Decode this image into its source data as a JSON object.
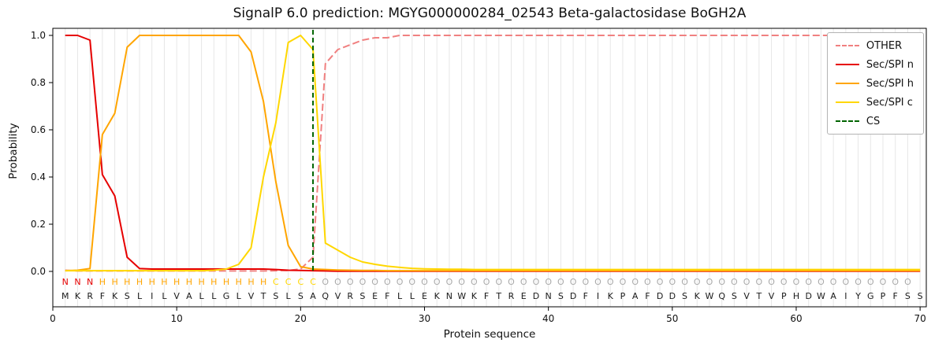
{
  "chart_data": {
    "type": "line",
    "title": "SignalP 6.0 prediction: MGYG000000284_02543 Beta-galactosidase BoGH2A",
    "xlabel": "Protein sequence",
    "ylabel": "Probability",
    "xlim": [
      0,
      70.5
    ],
    "ylim": [
      -0.15,
      1.03
    ],
    "xticks": [
      0,
      10,
      20,
      30,
      40,
      50,
      60,
      70
    ],
    "yticks": [
      0,
      0.2,
      0.4,
      0.6,
      0.8,
      1
    ],
    "grid": "vertical per-residue gridlines",
    "grid_color": "#e7e7e7",
    "legend_position": "upper right",
    "x_start": 1,
    "sequence": "MKRFKSLILVALLGLVTSLSAQVRSEFLLEKNWKFTREDNSDFIKPAFDDSKWQSVTVPHDWAIYGPFSS",
    "region_labels": "NNNHHHHHHHHHHHHHHCCCCOOOOOOOOOOOOOOOOOOOOOOOOOOOOOOOOOOOOOOOOOOOOOOOO",
    "residue_label_colors": {
      "N": "#e60000",
      "H": "#ffa500",
      "C": "#ffd700",
      "O": "#aaaaaa"
    },
    "sequence_letter_color": "#1a1a1a",
    "cs": {
      "label": "CS",
      "position": 21,
      "color": "#006400",
      "dash": "dashed"
    },
    "series": [
      {
        "name": "OTHER",
        "color": "#f08080",
        "dash": "dashed",
        "values": [
          0.005,
          0.002,
          0.002,
          0.002,
          0.002,
          0.002,
          0.002,
          0.002,
          0.002,
          0.002,
          0.002,
          0.002,
          0.002,
          0.002,
          0.002,
          0.002,
          0.002,
          0.003,
          0.004,
          0.01,
          0.06,
          0.88,
          0.94,
          0.96,
          0.98,
          0.99,
          0.99,
          1,
          1,
          1,
          1,
          1,
          1,
          1,
          1,
          1,
          1,
          1,
          1,
          1,
          1,
          1,
          1,
          1,
          1,
          1,
          1,
          1,
          1,
          1,
          1,
          1,
          1,
          1,
          1,
          1,
          1,
          1,
          1,
          1,
          1,
          1,
          1,
          1,
          1,
          1,
          1,
          1,
          1,
          1
        ]
      },
      {
        "name": "Sec/SPI n",
        "color": "#e60000",
        "dash": "solid",
        "values": [
          1,
          1,
          0.98,
          0.41,
          0.32,
          0.06,
          0.012,
          0.01,
          0.01,
          0.01,
          0.01,
          0.01,
          0.01,
          0.01,
          0.01,
          0.01,
          0.01,
          0.008,
          0.005,
          0.004,
          0.003,
          0.002,
          0.001,
          0.001,
          0.001,
          0.001,
          0.001,
          0.001,
          0.001,
          0.001,
          0.001,
          0.001,
          0.001,
          0.001,
          0.001,
          0.001,
          0.001,
          0.001,
          0.001,
          0.001,
          0.001,
          0.001,
          0.001,
          0.001,
          0.001,
          0.001,
          0.001,
          0.001,
          0.001,
          0.001,
          0.001,
          0.001,
          0.001,
          0.001,
          0.001,
          0.001,
          0.001,
          0.001,
          0.001,
          0.001,
          0.001,
          0.001,
          0.001,
          0.001,
          0.001,
          0.001,
          0.001,
          0.001,
          0.001,
          0.001
        ]
      },
      {
        "name": "Sec/SPI h",
        "color": "#ffa500",
        "dash": "solid",
        "values": [
          0.003,
          0.005,
          0.012,
          0.58,
          0.67,
          0.95,
          1,
          1,
          1,
          1,
          1,
          1,
          1,
          1,
          1,
          0.93,
          0.72,
          0.38,
          0.11,
          0.02,
          0.01,
          0.008,
          0.006,
          0.005,
          0.004,
          0.004,
          0.003,
          0.003,
          0.003,
          0.003,
          0.003,
          0.003,
          0.003,
          0.003,
          0.003,
          0.003,
          0.003,
          0.003,
          0.003,
          0.003,
          0.003,
          0.003,
          0.003,
          0.003,
          0.003,
          0.003,
          0.003,
          0.003,
          0.003,
          0.003,
          0.003,
          0.003,
          0.003,
          0.003,
          0.003,
          0.003,
          0.003,
          0.003,
          0.003,
          0.003,
          0.003,
          0.003,
          0.003,
          0.003,
          0.003,
          0.003,
          0.003,
          0.003,
          0.003,
          0.003
        ]
      },
      {
        "name": "Sec/SPI c",
        "color": "#ffd700",
        "dash": "solid",
        "values": [
          0.003,
          0.003,
          0.003,
          0.003,
          0.003,
          0.003,
          0.003,
          0.003,
          0.003,
          0.003,
          0.003,
          0.003,
          0.005,
          0.01,
          0.03,
          0.1,
          0.4,
          0.63,
          0.97,
          1,
          0.94,
          0.12,
          0.09,
          0.06,
          0.04,
          0.03,
          0.022,
          0.017,
          0.013,
          0.011,
          0.01,
          0.009,
          0.009,
          0.008,
          0.008,
          0.008,
          0.008,
          0.008,
          0.008,
          0.008,
          0.008,
          0.008,
          0.008,
          0.008,
          0.008,
          0.008,
          0.008,
          0.008,
          0.008,
          0.008,
          0.008,
          0.008,
          0.008,
          0.008,
          0.008,
          0.008,
          0.008,
          0.008,
          0.008,
          0.008,
          0.008,
          0.008,
          0.008,
          0.008,
          0.008,
          0.008,
          0.008,
          0.008,
          0.008,
          0.008
        ]
      }
    ]
  }
}
